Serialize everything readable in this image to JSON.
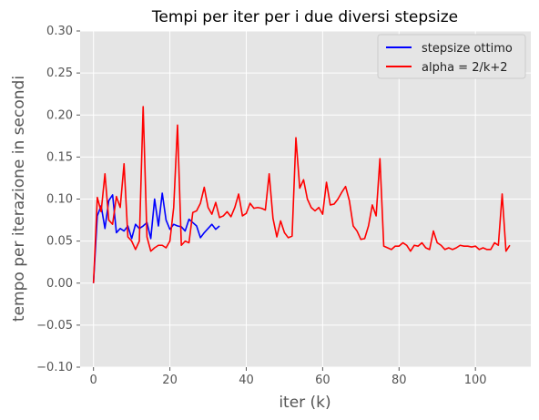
{
  "chart_data": {
    "type": "line",
    "title": "Tempi per iter per i due diversi stepsize",
    "xlabel": "iter (k)",
    "ylabel": "tempo per iterazione in secondi",
    "xlim": [
      -3.5,
      114.5
    ],
    "ylim": [
      -0.1,
      0.3
    ],
    "xticks": [
      0,
      20,
      40,
      60,
      80,
      100
    ],
    "yticks": [
      -0.1,
      -0.05,
      0.0,
      0.05,
      0.1,
      0.15,
      0.2,
      0.25,
      0.3
    ],
    "ytick_labels": [
      "−0.10",
      "−0.05",
      "0.00",
      "0.05",
      "0.10",
      "0.15",
      "0.20",
      "0.25",
      "0.30"
    ],
    "grid": true,
    "legend_position": "top-right",
    "series": [
      {
        "name": "stepsize ottimo",
        "color": "#0000ff",
        "x": [
          0,
          1,
          2,
          3,
          4,
          5,
          6,
          7,
          8,
          9,
          10,
          11,
          12,
          13,
          14,
          15,
          16,
          17,
          18,
          19,
          20,
          21,
          22,
          23,
          24,
          25,
          26,
          27,
          28,
          29,
          30,
          31,
          32,
          33
        ],
        "y": [
          0.0,
          0.08,
          0.092,
          0.065,
          0.098,
          0.105,
          0.06,
          0.065,
          0.062,
          0.068,
          0.053,
          0.07,
          0.065,
          0.068,
          0.072,
          0.053,
          0.1,
          0.068,
          0.107,
          0.075,
          0.064,
          0.07,
          0.068,
          0.067,
          0.062,
          0.076,
          0.072,
          0.068,
          0.054,
          0.06,
          0.065,
          0.07,
          0.064,
          0.068
        ]
      },
      {
        "name": "alpha = 2/k+2",
        "color": "#ff0000",
        "x": [
          0,
          1,
          2,
          3,
          4,
          5,
          6,
          7,
          8,
          9,
          10,
          11,
          12,
          13,
          14,
          15,
          16,
          17,
          18,
          19,
          20,
          21,
          22,
          23,
          24,
          25,
          26,
          27,
          28,
          29,
          30,
          31,
          32,
          33,
          34,
          35,
          36,
          37,
          38,
          39,
          40,
          41,
          42,
          43,
          44,
          45,
          46,
          47,
          48,
          49,
          50,
          51,
          52,
          53,
          54,
          55,
          56,
          57,
          58,
          59,
          60,
          61,
          62,
          63,
          64,
          65,
          66,
          67,
          68,
          69,
          70,
          71,
          72,
          73,
          74,
          75,
          76,
          77,
          78,
          79,
          80,
          81,
          82,
          83,
          84,
          85,
          86,
          87,
          88,
          89,
          90,
          91,
          92,
          93,
          94,
          95,
          96,
          97,
          98,
          99,
          100,
          101,
          102,
          103,
          104,
          105,
          106,
          107,
          108,
          109
        ],
        "y": [
          0.0,
          0.102,
          0.085,
          0.13,
          0.075,
          0.07,
          0.103,
          0.09,
          0.142,
          0.055,
          0.05,
          0.04,
          0.05,
          0.21,
          0.055,
          0.038,
          0.042,
          0.045,
          0.045,
          0.042,
          0.05,
          0.09,
          0.188,
          0.045,
          0.05,
          0.048,
          0.084,
          0.086,
          0.095,
          0.114,
          0.09,
          0.082,
          0.096,
          0.078,
          0.08,
          0.085,
          0.079,
          0.09,
          0.106,
          0.08,
          0.083,
          0.095,
          0.089,
          0.09,
          0.089,
          0.087,
          0.13,
          0.077,
          0.055,
          0.074,
          0.06,
          0.054,
          0.056,
          0.173,
          0.113,
          0.123,
          0.1,
          0.09,
          0.086,
          0.09,
          0.082,
          0.12,
          0.093,
          0.094,
          0.1,
          0.108,
          0.115,
          0.098,
          0.068,
          0.062,
          0.052,
          0.053,
          0.068,
          0.093,
          0.08,
          0.148,
          0.044,
          0.042,
          0.04,
          0.044,
          0.044,
          0.048,
          0.045,
          0.038,
          0.045,
          0.044,
          0.048,
          0.042,
          0.04,
          0.062,
          0.048,
          0.045,
          0.04,
          0.042,
          0.04,
          0.042,
          0.045,
          0.044,
          0.044,
          0.043,
          0.044,
          0.04,
          0.042,
          0.04,
          0.04,
          0.048,
          0.045,
          0.106,
          0.038,
          0.045
        ]
      }
    ]
  }
}
